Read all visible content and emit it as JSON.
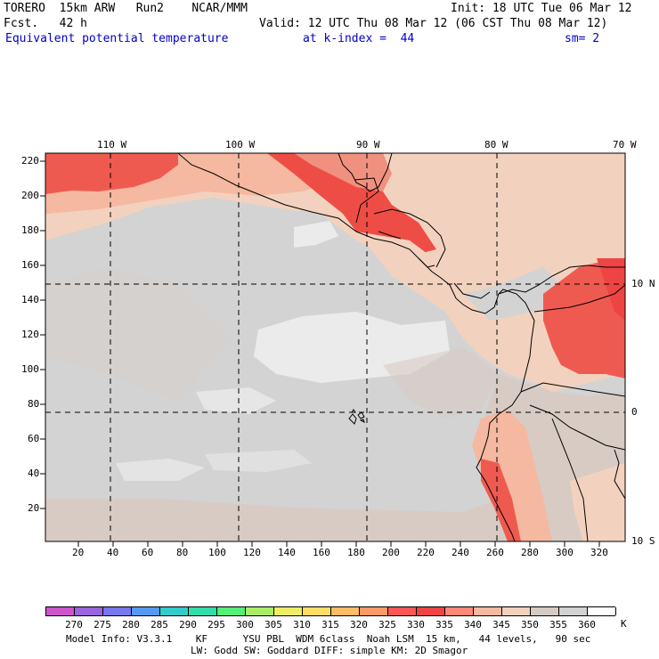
{
  "header": {
    "model": "TORERO  15km ARW   Run2    NCAR/MMM",
    "init": "Init: 18 UTC Tue 06 Mar 12",
    "fcst": "Fcst.   42 h",
    "valid": "Valid: 12 UTC Thu 08 Mar 12 (06 CST Thu 08 Mar 12)",
    "field": "Equivalent potential temperature",
    "level": "at k-index =  44",
    "smooth": "sm= 2"
  },
  "map": {
    "lon_labels": [
      "110 W",
      "100 W",
      "90 W",
      "80 W",
      "70 W"
    ],
    "lat_labels": [
      "10 N",
      "0",
      "10 S"
    ],
    "y_ticks": [
      "220",
      "200",
      "180",
      "160",
      "140",
      "120",
      "100",
      "80",
      "60",
      "40",
      "20"
    ],
    "x_ticks": [
      "20",
      "40",
      "60",
      "80",
      "100",
      "120",
      "140",
      "160",
      "180",
      "200",
      "220",
      "240",
      "260",
      "280",
      "300",
      "320"
    ]
  },
  "colorbar": {
    "labels": [
      "270",
      "275",
      "280",
      "285",
      "290",
      "295",
      "300",
      "305",
      "310",
      "315",
      "320",
      "325",
      "330",
      "335",
      "340",
      "345",
      "350",
      "355",
      "360"
    ],
    "unit": "K",
    "colors": [
      "#cc55cc",
      "#9966dd",
      "#7777ee",
      "#5599ee",
      "#33cccc",
      "#33ddaa",
      "#55ee77",
      "#aaee66",
      "#eeee66",
      "#ffdd66",
      "#ffbb66",
      "#ff9966",
      "#ff5555",
      "#ee4444",
      "#ff8877",
      "#f5b8a0",
      "#f2d2be",
      "#d6cbc4",
      "#d2d2d2",
      "#ffffff"
    ]
  },
  "footer": {
    "line1": "Model Info: V3.3.1    KF      YSU PBL  WDM 6class  Noah LSM  15 km,   44 levels,   90 sec",
    "line2": "LW: Godd SW: Goddard DIFF: simple KM: 2D Smagor"
  }
}
